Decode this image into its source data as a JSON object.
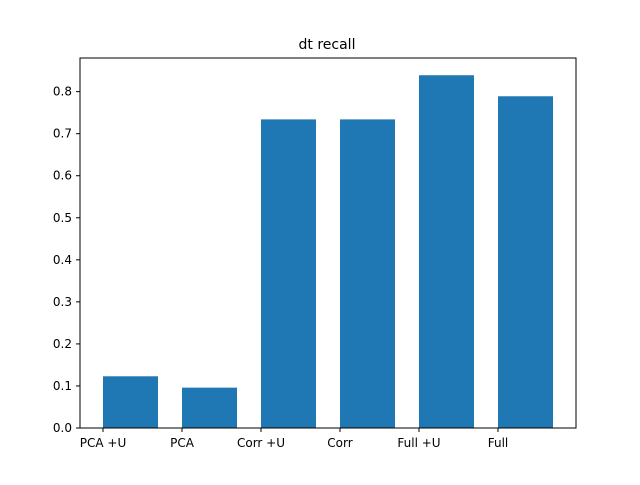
{
  "chart_data": {
    "type": "bar",
    "title": "dt recall",
    "xlabel": "",
    "ylabel": "",
    "categories": [
      "PCA +U",
      "PCA",
      "Corr +U",
      "Corr",
      "Full +U",
      "Full"
    ],
    "values": [
      0.123,
      0.096,
      0.734,
      0.734,
      0.839,
      0.789
    ],
    "ylim": [
      0,
      0.88
    ],
    "yticks": [
      0.0,
      0.1,
      0.2,
      0.3,
      0.4,
      0.5,
      0.6,
      0.7,
      0.8
    ],
    "ytick_labels": [
      "0.0",
      "0.1",
      "0.2",
      "0.3",
      "0.4",
      "0.5",
      "0.6",
      "0.7",
      "0.8"
    ],
    "grid": false,
    "legend": "none",
    "bar_color": "#1f77b4"
  }
}
